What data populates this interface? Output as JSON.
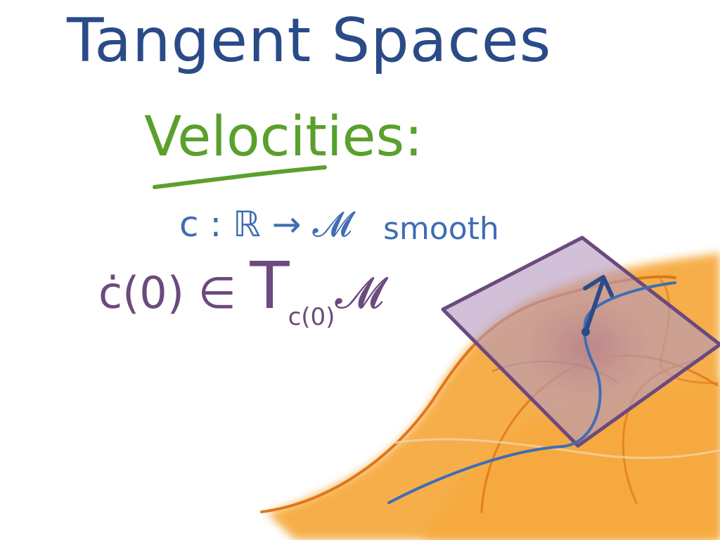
{
  "title": "Tangent Spaces",
  "heading": "Velocities:",
  "curve_def": {
    "expression": "c : ℝ → 𝓜",
    "qualifier": "smooth"
  },
  "velocity_stmt": {
    "lhs": "ċ(0) ∈",
    "space": "T",
    "subscript": "c(0)",
    "manifold": "𝓜"
  },
  "colors": {
    "title": "#2a4b87",
    "heading": "#5aa02c",
    "definition": "#3f6db3",
    "statement": "#6b4a7e",
    "surface_fill": "#f6a83a",
    "surface_edge": "#e0761a",
    "plane_fill": "#b59abf",
    "plane_edge": "#6b4a7e",
    "curve": "#3f6db3",
    "vector": "#2a4b87"
  }
}
